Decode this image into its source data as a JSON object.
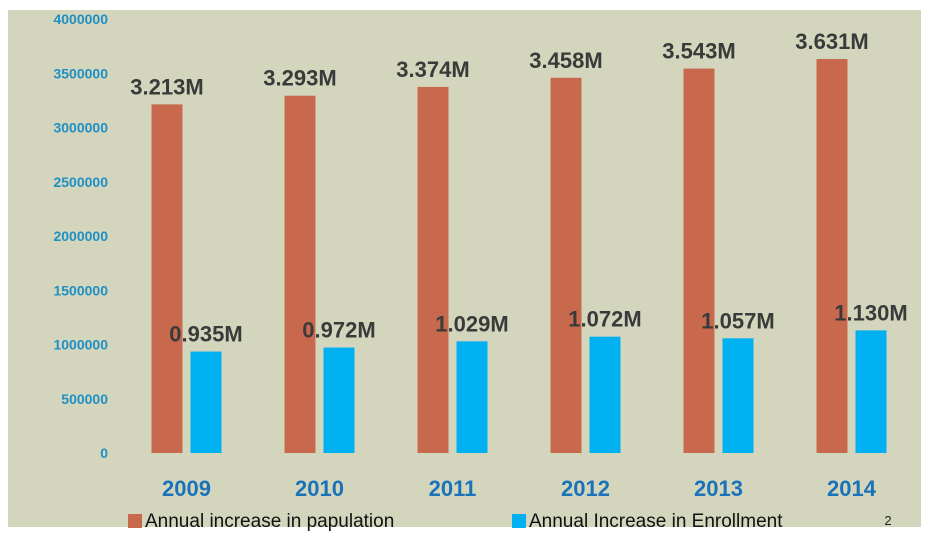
{
  "colors": {
    "background": "#ffffff",
    "plot_area": "#d3d6bd",
    "population": "#c8694d",
    "enrollment": "#00b0f0",
    "axis_text": "#1f8fc4",
    "category_text": "#1a73b8"
  },
  "page_number": "2",
  "chart_data": {
    "type": "bar",
    "title": "",
    "xlabel": "",
    "ylabel": "",
    "ylim": [
      0,
      4000000
    ],
    "yticks": [
      "0",
      "500000",
      "1000000",
      "1500000",
      "2000000",
      "2500000",
      "3000000",
      "3500000",
      "4000000"
    ],
    "categories": [
      "2009",
      "2010",
      "2011",
      "2012",
      "2013",
      "2014"
    ],
    "grid": false,
    "legend_position": "bottom",
    "series": [
      {
        "name": "Annual increase in papulation",
        "color": "#c8694d",
        "values": [
          3213000,
          3293000,
          3374000,
          3458000,
          3543000,
          3631000
        ],
        "labels": [
          "3.213M",
          "3.293M",
          "3.374M",
          "3.458M",
          "3.543M",
          "3.631M"
        ]
      },
      {
        "name": "Annual Increase in Enrollment",
        "color": "#00b0f0",
        "values": [
          935000,
          972000,
          1029000,
          1072000,
          1057000,
          1130000
        ],
        "labels": [
          "0.935M",
          "0.972M",
          "1.029M",
          "1.072M",
          "1.057M",
          "1.130M"
        ]
      }
    ]
  }
}
